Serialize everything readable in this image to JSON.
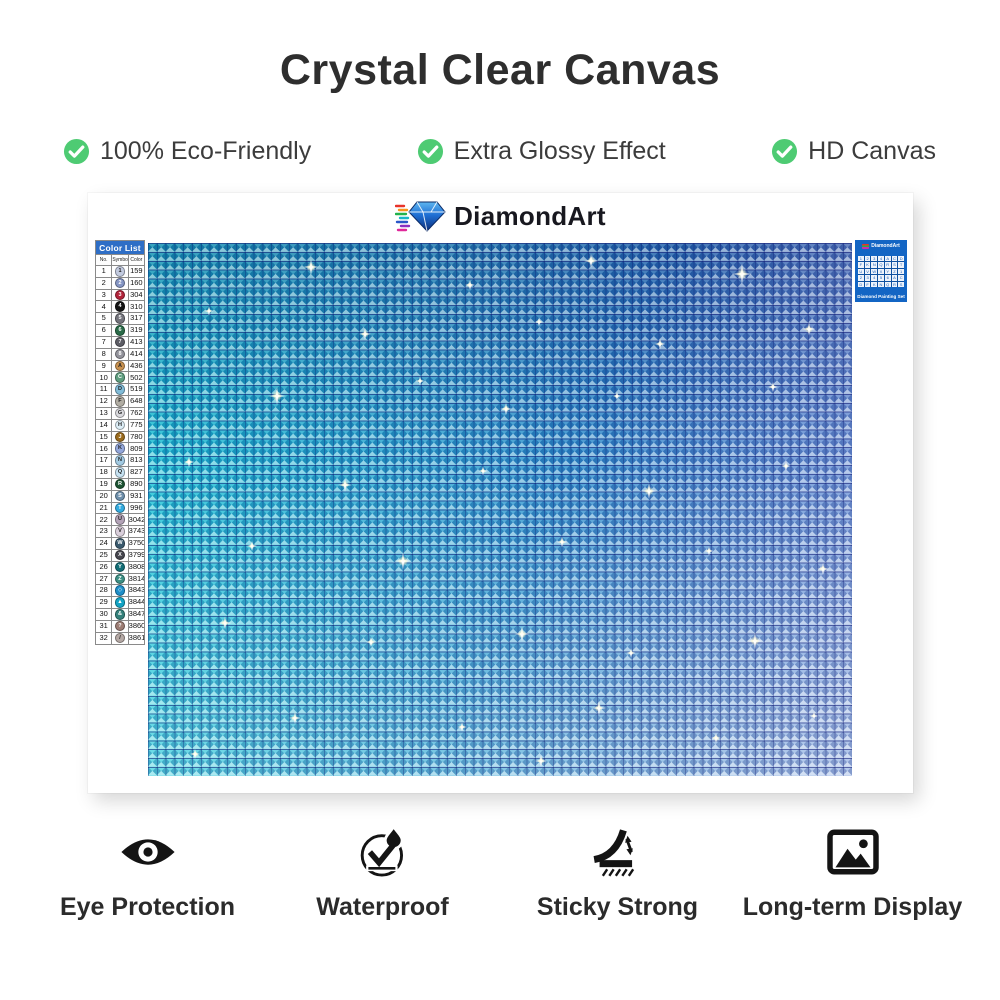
{
  "title": "Crystal Clear Canvas",
  "features": [
    {
      "label": "100% Eco-Friendly"
    },
    {
      "label": "Extra Glossy Effect"
    },
    {
      "label": "HD Canvas"
    }
  ],
  "brand": {
    "name": "DiamondArt"
  },
  "board": {
    "color_list": {
      "title": "Color List",
      "headers": {
        "no": "No.",
        "symbol": "Symbol",
        "color": "Color"
      },
      "rows": [
        {
          "no": "1",
          "symbol": "1",
          "code": "159",
          "swatch": "#c3cbe0"
        },
        {
          "no": "2",
          "symbol": "2",
          "code": "160",
          "swatch": "#8595c4"
        },
        {
          "no": "3",
          "symbol": "3",
          "code": "304",
          "swatch": "#b2233a"
        },
        {
          "no": "4",
          "symbol": "4",
          "code": "310",
          "swatch": "#141414"
        },
        {
          "no": "5",
          "symbol": "5",
          "code": "317",
          "swatch": "#73737b"
        },
        {
          "no": "6",
          "symbol": "6",
          "code": "319",
          "swatch": "#2a6b48"
        },
        {
          "no": "7",
          "symbol": "7",
          "code": "413",
          "swatch": "#5d5d65"
        },
        {
          "no": "8",
          "symbol": "8",
          "code": "414",
          "swatch": "#93939b"
        },
        {
          "no": "9",
          "symbol": "A",
          "code": "436",
          "swatch": "#c8914f"
        },
        {
          "no": "10",
          "symbol": "C",
          "code": "502",
          "swatch": "#5f9e7f"
        },
        {
          "no": "11",
          "symbol": "D",
          "code": "519",
          "swatch": "#81bcd8"
        },
        {
          "no": "12",
          "symbol": "F",
          "code": "648",
          "swatch": "#b1ada3"
        },
        {
          "no": "13",
          "symbol": "G",
          "code": "762",
          "swatch": "#d9d9dd"
        },
        {
          "no": "14",
          "symbol": "H",
          "code": "775",
          "swatch": "#ddeef7"
        },
        {
          "no": "15",
          "symbol": "J",
          "code": "780",
          "swatch": "#9a6a1c"
        },
        {
          "no": "16",
          "symbol": "K",
          "code": "809",
          "swatch": "#93a7db"
        },
        {
          "no": "17",
          "symbol": "N",
          "code": "813",
          "swatch": "#a3cbe3"
        },
        {
          "no": "18",
          "symbol": "Q",
          "code": "827",
          "swatch": "#c6e2f2"
        },
        {
          "no": "19",
          "symbol": "R",
          "code": "890",
          "swatch": "#1c5433"
        },
        {
          "no": "20",
          "symbol": "S",
          "code": "931",
          "swatch": "#6e8fab"
        },
        {
          "no": "21",
          "symbol": "T",
          "code": "996",
          "swatch": "#33abdf"
        },
        {
          "no": "22",
          "symbol": "U",
          "code": "3042",
          "swatch": "#b3a3b7"
        },
        {
          "no": "23",
          "symbol": "V",
          "code": "3743",
          "swatch": "#dacfdb"
        },
        {
          "no": "24",
          "symbol": "W",
          "code": "3750",
          "swatch": "#3a5a6e"
        },
        {
          "no": "25",
          "symbol": "X",
          "code": "3799",
          "swatch": "#46464e"
        },
        {
          "no": "26",
          "symbol": "Y",
          "code": "3808",
          "swatch": "#136e76"
        },
        {
          "no": "27",
          "symbol": "Z",
          "code": "3814",
          "swatch": "#3d9084"
        },
        {
          "no": "28",
          "symbol": "◇",
          "code": "3843",
          "swatch": "#1e8fc9"
        },
        {
          "no": "29",
          "symbol": "▲",
          "code": "3844",
          "swatch": "#12a3c4"
        },
        {
          "no": "30",
          "symbol": "&",
          "code": "3847",
          "swatch": "#34807a"
        },
        {
          "no": "31",
          "symbol": "?",
          "code": "3860",
          "swatch": "#9d7d74"
        },
        {
          "no": "32",
          "symbol": "/",
          "code": "3861",
          "swatch": "#b5a9a5"
        }
      ]
    },
    "mini_label": {
      "brand": "DiamondArt",
      "caption": "Diamond Painting Set"
    }
  },
  "benefits": [
    {
      "label": "Eye Protection",
      "icon": "eye-icon"
    },
    {
      "label": "Waterproof",
      "icon": "waterproof-icon"
    },
    {
      "label": "Sticky Strong",
      "icon": "sticky-strong-icon"
    },
    {
      "label": "Long-term Display",
      "icon": "picture-icon"
    }
  ],
  "colors": {
    "accent_green": "#4ecb73",
    "list_header_blue": "#2e6ec6",
    "mini_label_blue": "#1365c4",
    "canvas_teal": "#17c8d8",
    "canvas_blue": "#2f66c8"
  }
}
